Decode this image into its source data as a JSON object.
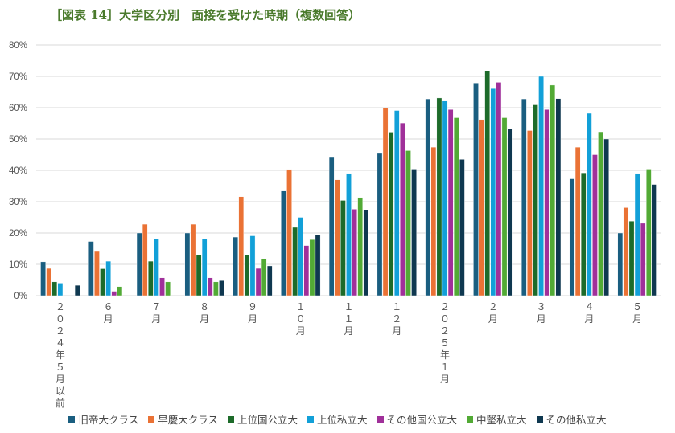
{
  "title": "［図表 14］大学区分別　面接を受けた時期（複数回答）",
  "chart_data": {
    "type": "bar",
    "title": "［図表 14］大学区分別　面接を受けた時期（複数回答）",
    "categories": [
      "2024年5月以前",
      "6月",
      "7月",
      "8月",
      "9月",
      "10月",
      "11月",
      "12月",
      "2025年1月",
      "2月",
      "3月",
      "4月",
      "5月"
    ],
    "ylim": [
      0,
      80
    ],
    "yticks": [
      "0%",
      "10%",
      "20%",
      "30%",
      "40%",
      "50%",
      "60%",
      "70%",
      "80%"
    ],
    "grid": true,
    "legend": "bottom",
    "series": [
      {
        "name": "旧帝大クラス",
        "color": "#1a5e80",
        "values": [
          10.8,
          17.3,
          20.0,
          20.0,
          18.7,
          33.4,
          44.1,
          45.4,
          62.8,
          67.9,
          62.8,
          37.3,
          20.0
        ]
      },
      {
        "name": "早慶大クラス",
        "color": "#ea7235",
        "values": [
          8.7,
          14.1,
          22.8,
          22.8,
          31.6,
          40.3,
          37.0,
          59.8,
          47.4,
          56.2,
          52.7,
          47.4,
          28.1
        ]
      },
      {
        "name": "上位国公立大",
        "color": "#1d6b2a",
        "values": [
          4.4,
          8.6,
          11.0,
          13.0,
          13.0,
          21.8,
          30.4,
          52.2,
          63.1,
          71.7,
          60.9,
          39.2,
          23.8
        ]
      },
      {
        "name": "上位私立大",
        "color": "#12a0d8",
        "values": [
          4.0,
          11.0,
          18.1,
          18.1,
          19.1,
          25.0,
          39.0,
          59.1,
          62.1,
          66.1,
          70.0,
          58.2,
          39.0
        ]
      },
      {
        "name": "その他国公立大",
        "color": "#a0309a",
        "values": [
          0,
          1.4,
          5.7,
          5.7,
          8.7,
          16.0,
          27.6,
          55.1,
          59.4,
          68.1,
          59.4,
          45.0,
          23.1
        ]
      },
      {
        "name": "中堅私立大",
        "color": "#52aa35",
        "values": [
          0,
          2.9,
          4.4,
          4.4,
          11.8,
          17.9,
          31.3,
          46.3,
          56.8,
          56.8,
          67.2,
          52.3,
          40.4
        ]
      },
      {
        "name": "その他私立大",
        "color": "#0f3850",
        "values": [
          3.3,
          0,
          0,
          4.8,
          9.5,
          19.3,
          27.4,
          40.4,
          43.5,
          53.2,
          62.9,
          50.0,
          35.5
        ]
      }
    ]
  }
}
